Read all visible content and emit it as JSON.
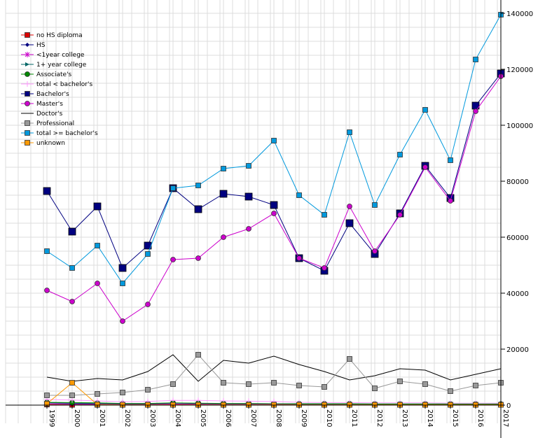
{
  "chart_data": {
    "type": "line",
    "title": "",
    "xlabel": "",
    "ylabel": "",
    "categories": [
      "1999",
      "2000",
      "2001",
      "2002",
      "2003",
      "2004",
      "2005",
      "2006",
      "2007",
      "2008",
      "2009",
      "2010",
      "2011",
      "2012",
      "2013",
      "2014",
      "2015",
      "2016",
      "2017"
    ],
    "ylim": [
      0,
      140000
    ],
    "yticks": [
      0,
      20000,
      40000,
      60000,
      80000,
      100000,
      120000,
      140000
    ],
    "ytick_labels": [
      "0",
      "20000",
      "40000",
      "60000",
      "80000",
      "100000",
      "120000",
      "140000"
    ],
    "y_axis_side": "right",
    "grid": true,
    "legend_position": "top-left",
    "series": [
      {
        "name": "no HS diploma",
        "color": "#dd0000",
        "marker": "square",
        "values": [
          200,
          100,
          100,
          100,
          100,
          200,
          200,
          100,
          100,
          100,
          100,
          100,
          100,
          100,
          100,
          100,
          100,
          100,
          100
        ]
      },
      {
        "name": "HS",
        "color": "#000080",
        "marker": "diamond",
        "values": [
          500,
          400,
          300,
          300,
          300,
          400,
          300,
          300,
          300,
          300,
          300,
          300,
          300,
          300,
          300,
          300,
          300,
          300,
          300
        ]
      },
      {
        "name": "<1year college",
        "color": "#cc00cc",
        "marker": "star",
        "values": [
          500,
          500,
          400,
          400,
          400,
          400,
          400,
          300,
          300,
          300,
          300,
          300,
          300,
          300,
          300,
          300,
          300,
          300,
          300
        ]
      },
      {
        "name": "1+ year college",
        "color": "#006666",
        "marker": "triangle",
        "values": [
          800,
          700,
          600,
          500,
          500,
          700,
          600,
          500,
          500,
          500,
          400,
          400,
          400,
          400,
          400,
          400,
          400,
          400,
          400
        ]
      },
      {
        "name": "Associate's",
        "color": "#008800",
        "marker": "circle",
        "values": [
          1000,
          900,
          800,
          600,
          600,
          800,
          700,
          600,
          600,
          500,
          500,
          500,
          500,
          400,
          400,
          400,
          400,
          400,
          400
        ]
      },
      {
        "name": "total < bachelor's",
        "color": "#ff99ff",
        "marker": "plus",
        "values": [
          2000,
          1800,
          1500,
          1200,
          1300,
          1700,
          1700,
          1500,
          1400,
          1300,
          1000,
          900,
          900,
          800,
          800,
          800,
          700,
          700,
          700
        ]
      },
      {
        "name": "Bachelor's",
        "color": "#000080",
        "marker": "bigsquare",
        "values": [
          76500,
          62000,
          71000,
          49000,
          57000,
          77500,
          70000,
          75500,
          74500,
          71500,
          52500,
          48000,
          65000,
          54000,
          68500,
          85500,
          74000,
          107000,
          118500
        ]
      },
      {
        "name": "Master's",
        "color": "#cc00cc",
        "marker": "circle",
        "values": [
          41000,
          37000,
          43500,
          30000,
          36000,
          52000,
          52500,
          60000,
          63000,
          68500,
          52500,
          49000,
          71000,
          55000,
          68000,
          85000,
          73000,
          105000,
          117500
        ]
      },
      {
        "name": "Doctor's",
        "color": "#000000",
        "marker": "none",
        "values": [
          10000,
          8500,
          9500,
          9000,
          12000,
          18000,
          8500,
          16000,
          15000,
          17500,
          14500,
          12000,
          9000,
          10500,
          13000,
          12500,
          9000,
          11000,
          13000
        ]
      },
      {
        "name": "Professional",
        "color": "#999999",
        "marker": "square",
        "values": [
          3500,
          3500,
          4000,
          4500,
          5500,
          7500,
          18000,
          8000,
          7500,
          8000,
          7000,
          6500,
          16500,
          6000,
          8500,
          7500,
          5000,
          7000,
          8000
        ]
      },
      {
        "name": "total >= bachelor's",
        "color": "#0099dd",
        "marker": "square",
        "values": [
          55000,
          49000,
          57000,
          43500,
          54000,
          77500,
          78500,
          84500,
          85500,
          94500,
          75000,
          68000,
          97500,
          71500,
          89500,
          105500,
          87500,
          123500,
          139500
        ]
      },
      {
        "name": "unknown",
        "color": "#ff9900",
        "marker": "square",
        "values": [
          500,
          8000,
          200,
          100,
          100,
          100,
          100,
          100,
          100,
          100,
          100,
          100,
          100,
          100,
          100,
          100,
          100,
          100,
          100
        ]
      }
    ]
  }
}
